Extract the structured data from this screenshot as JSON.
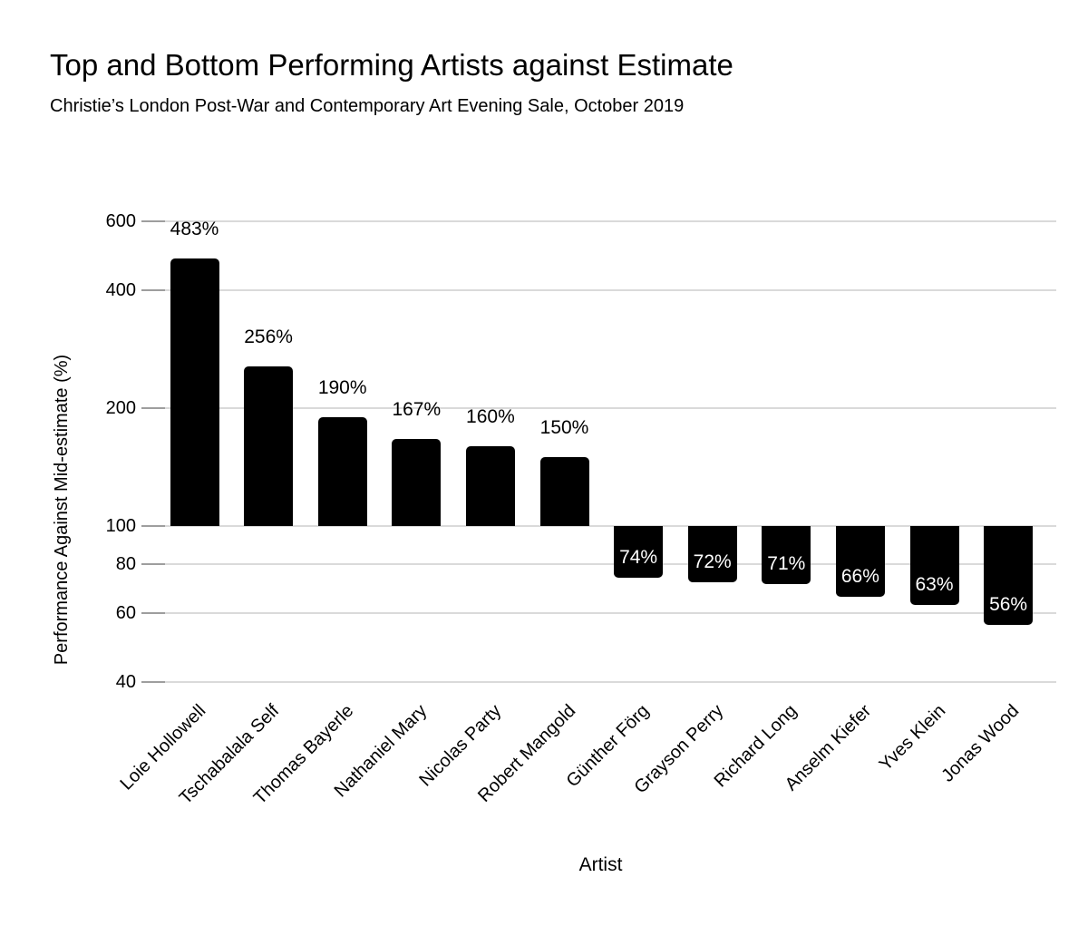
{
  "header": {
    "title": "Top and Bottom Performing Artists against Estimate",
    "subtitle": "Christie’s London Post-War and Contemporary Art Evening Sale, October 2019"
  },
  "chart_data": {
    "type": "bar",
    "title": "Top and Bottom Performing Artists against Estimate",
    "subtitle": "Christie’s London Post-War and Contemporary Art Evening Sale, October 2019",
    "xlabel": "Artist",
    "ylabel": "Performance Against Mid-estimate (%)",
    "yscale": "log",
    "baseline": 100,
    "ylim": [
      40,
      600
    ],
    "yticks": [
      600,
      400,
      200,
      100,
      80,
      60,
      40
    ],
    "grid": true,
    "legend": false,
    "categories": [
      "Loie Hollowell",
      "Tschabalala Self",
      "Thomas Bayerle",
      "Nathaniel Mary",
      "Nicolas Party",
      "Robert Mangold",
      "Günther Förg",
      "Grayson Perry",
      "Richard Long",
      "Anselm Kiefer",
      "Yves Klein",
      "Jonas Wood"
    ],
    "values": [
      483,
      256,
      190,
      167,
      160,
      150,
      74,
      72,
      71,
      66,
      63,
      56
    ],
    "value_labels": [
      "483%",
      "256%",
      "190%",
      "167%",
      "160%",
      "150%",
      "74%",
      "72%",
      "71%",
      "66%",
      "63%",
      "56%"
    ]
  },
  "colors": {
    "bar": "#000000",
    "gridline": "#dadada",
    "tick": "#9e9e9e",
    "text": "#000000",
    "label_on_bar": "#ffffff",
    "background": "#ffffff"
  }
}
